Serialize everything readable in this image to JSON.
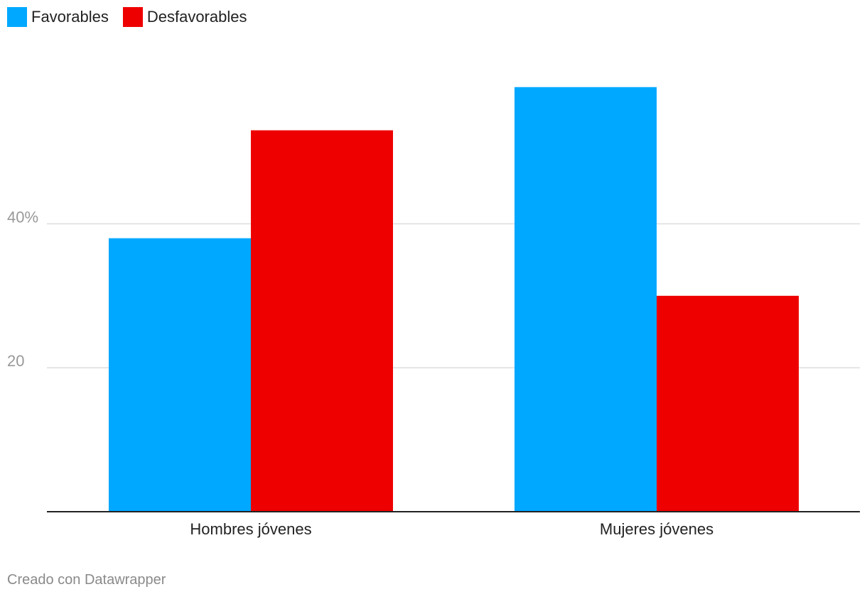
{
  "legend": {
    "items": [
      {
        "label": "Favorables",
        "color": "#00a8ff"
      },
      {
        "label": "Desfavorables",
        "color": "#ee0000"
      }
    ]
  },
  "footer": {
    "credit": "Creado con Datawrapper"
  },
  "chart_data": {
    "type": "bar",
    "categories": [
      "Hombres jóvenes",
      "Mujeres jóvenes"
    ],
    "series": [
      {
        "name": "Favorables",
        "values": [
          38,
          59
        ],
        "color": "#00a8ff"
      },
      {
        "name": "Desfavorables",
        "values": [
          53,
          30
        ],
        "color": "#ee0000"
      }
    ],
    "ylim": [
      0,
      59
    ],
    "yticks": [
      {
        "value": 20,
        "label": "20"
      },
      {
        "value": 40,
        "label": "40%"
      }
    ],
    "grid": true,
    "legend_position": "top-left",
    "title": "",
    "xlabel": "",
    "ylabel": ""
  }
}
